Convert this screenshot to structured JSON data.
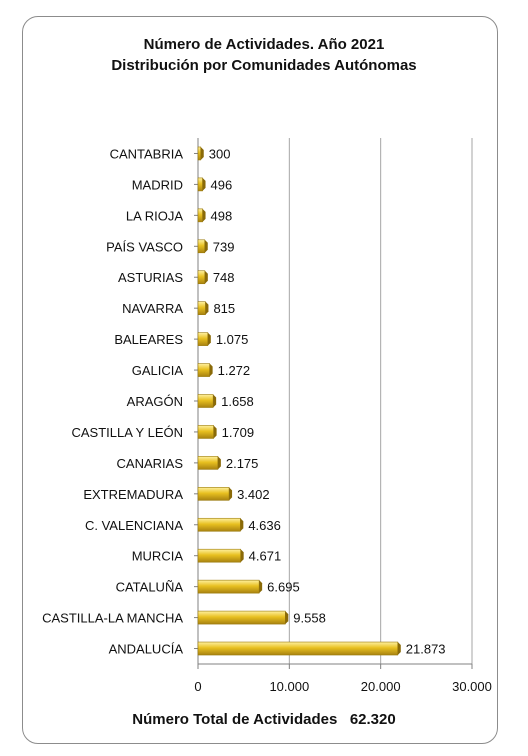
{
  "chart_data": {
    "type": "bar",
    "orientation": "horizontal",
    "title": "Número de Actividades. Año 2021",
    "subtitle": "Distribución por Comunidades Autónomas",
    "categories": [
      "CANTABRIA",
      "MADRID",
      "LA RIOJA",
      "PAÍS VASCO",
      "ASTURIAS",
      "NAVARRA",
      "BALEARES",
      "GALICIA",
      "ARAGÓN",
      "CASTILLA Y LEÓN",
      "CANARIAS",
      "EXTREMADURA",
      "C. VALENCIANA",
      "MURCIA",
      "CATALUÑA",
      "CASTILLA-LA MANCHA",
      "ANDALUCÍA"
    ],
    "values": [
      300,
      496,
      498,
      739,
      748,
      815,
      1075,
      1272,
      1658,
      1709,
      2175,
      3402,
      4636,
      4671,
      6695,
      9558,
      21873
    ],
    "value_labels": [
      "300",
      "496",
      "498",
      "739",
      "748",
      "815",
      "1.075",
      "1.272",
      "1.658",
      "1.709",
      "2.175",
      "3.402",
      "4.636",
      "4.671",
      "6.695",
      "9.558",
      "21.873"
    ],
    "xlim": [
      0,
      30000
    ],
    "x_ticks": [
      0,
      10000,
      20000,
      30000
    ],
    "x_tick_labels": [
      "0",
      "10.000",
      "20.000",
      "30.000"
    ],
    "grid": "vertical",
    "legend": "none",
    "bar_color": "#e8c020",
    "bar_shadow_color": "#8a6a08"
  },
  "footer": {
    "label": "Número Total de Actividades",
    "total": "62.320"
  }
}
